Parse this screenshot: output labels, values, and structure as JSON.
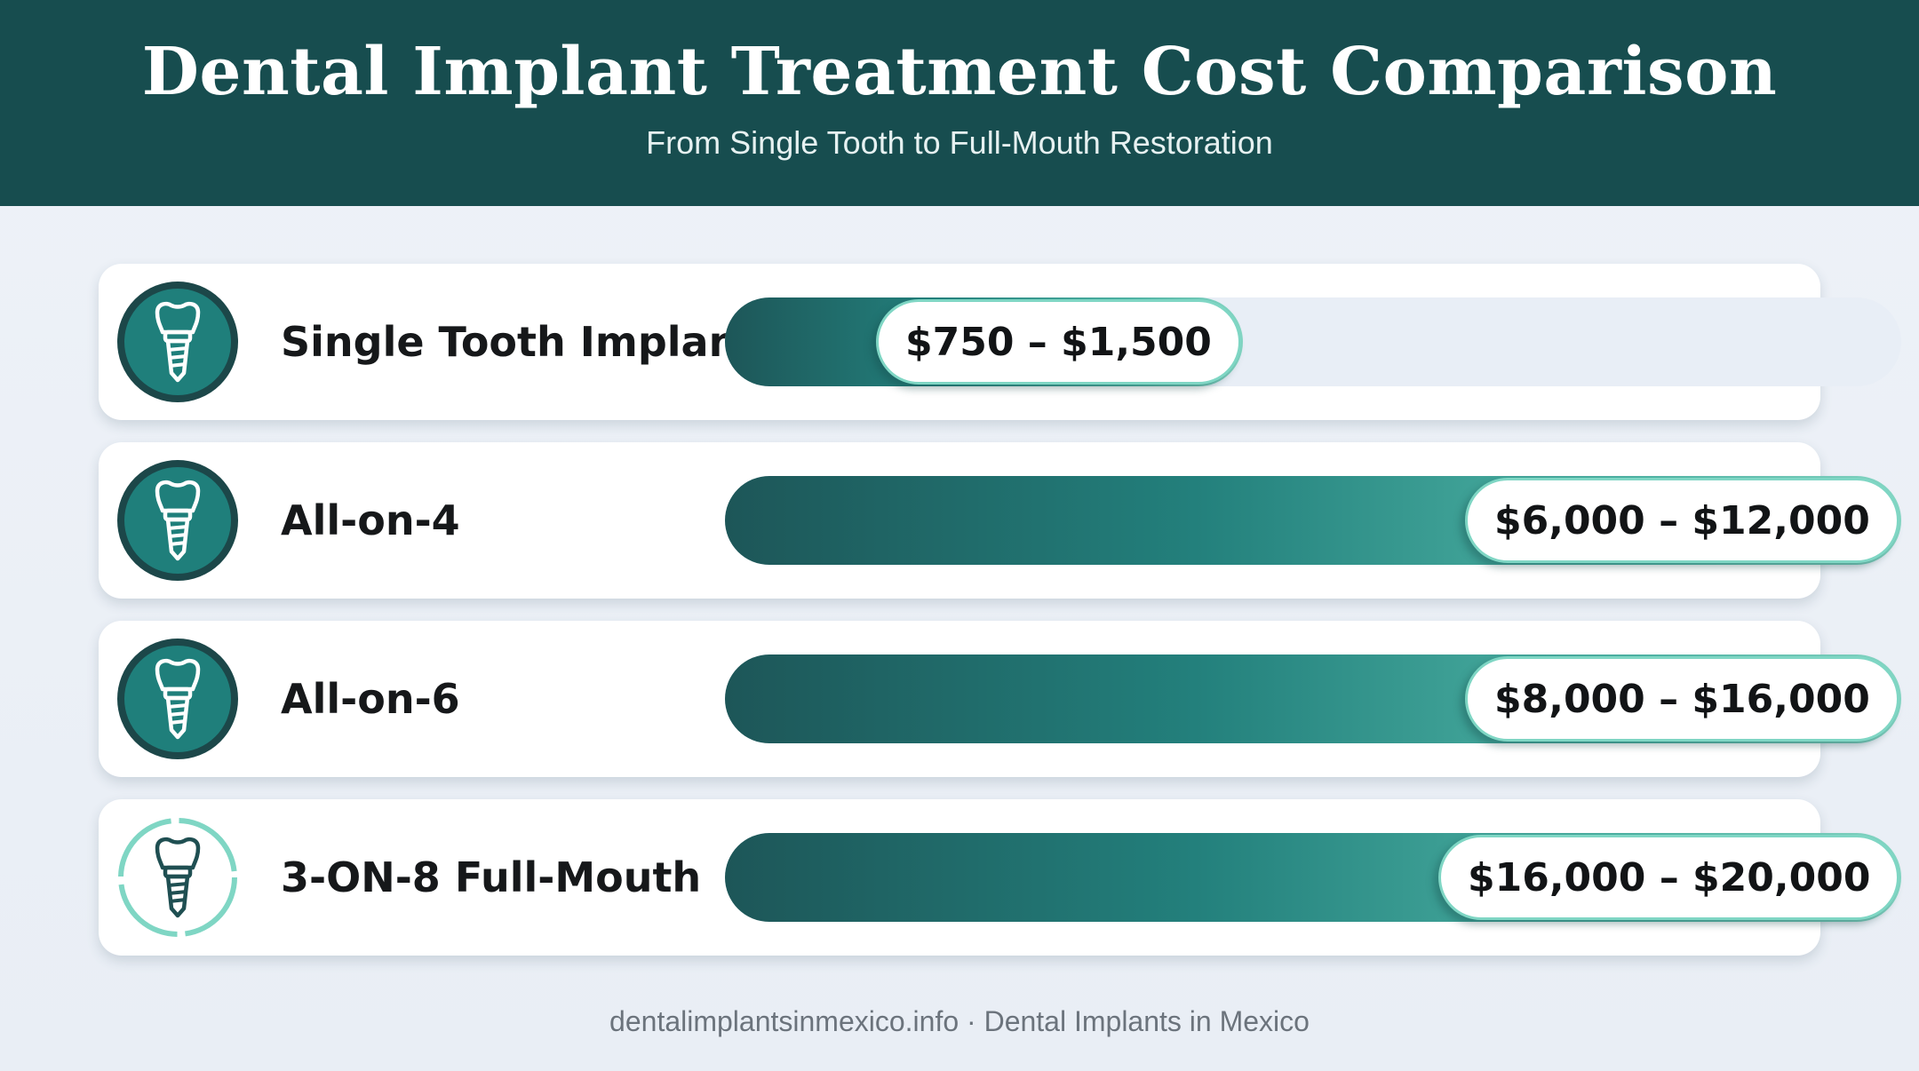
{
  "header": {
    "title": "Dental Implant Treatment Cost Comparison",
    "subtitle": "From Single Tooth to Full-Mouth Restoration"
  },
  "footer": {
    "text": "dentalimplantsinmexico.info · Dental Implants in Mexico"
  },
  "colors": {
    "header_bg": "#174d4f",
    "bar_dark": "#1d5658",
    "bar_light": "#86d8c5",
    "pill_border": "#7fd6c4",
    "track": "#e8eef6"
  },
  "rows": [
    {
      "label": "Single Tooth Implant",
      "price_label": "$750 – $1,500",
      "icon": "tooth-implant-icon",
      "icon_style": "filled",
      "bar_fill": 0.44
    },
    {
      "label": "All-on-4",
      "price_label": "$6,000 – $12,000",
      "icon": "tooth-implant-icon",
      "icon_style": "filled",
      "bar_fill": 1.0
    },
    {
      "label": "All-on-6",
      "price_label": "$8,000 – $16,000",
      "icon": "tooth-implant-icon",
      "icon_style": "filled",
      "bar_fill": 1.0
    },
    {
      "label": "3-ON-8 Full-Mouth",
      "price_label": "$16,000 – $20,000",
      "icon": "tooth-implant-icon",
      "icon_style": "outline",
      "bar_fill": 1.0
    }
  ],
  "chart_data": {
    "type": "bar",
    "orientation": "horizontal",
    "title": "Dental Implant Treatment Cost Comparison",
    "subtitle": "From Single Tooth to Full-Mouth Restoration",
    "categories": [
      "Single Tooth Implant",
      "All-on-4",
      "All-on-6",
      "3-ON-8 Full-Mouth"
    ],
    "series": [
      {
        "values": [
          [
            750,
            1500
          ],
          [
            6000,
            12000
          ],
          [
            8000,
            16000
          ],
          [
            16000,
            20000
          ]
        ]
      }
    ],
    "data_labels": [
      "$750 – $1,500",
      "$6,000 – $12,000",
      "$8,000 – $16,000",
      "$16,000 – $20,000"
    ],
    "grid": false,
    "legend": "none"
  }
}
